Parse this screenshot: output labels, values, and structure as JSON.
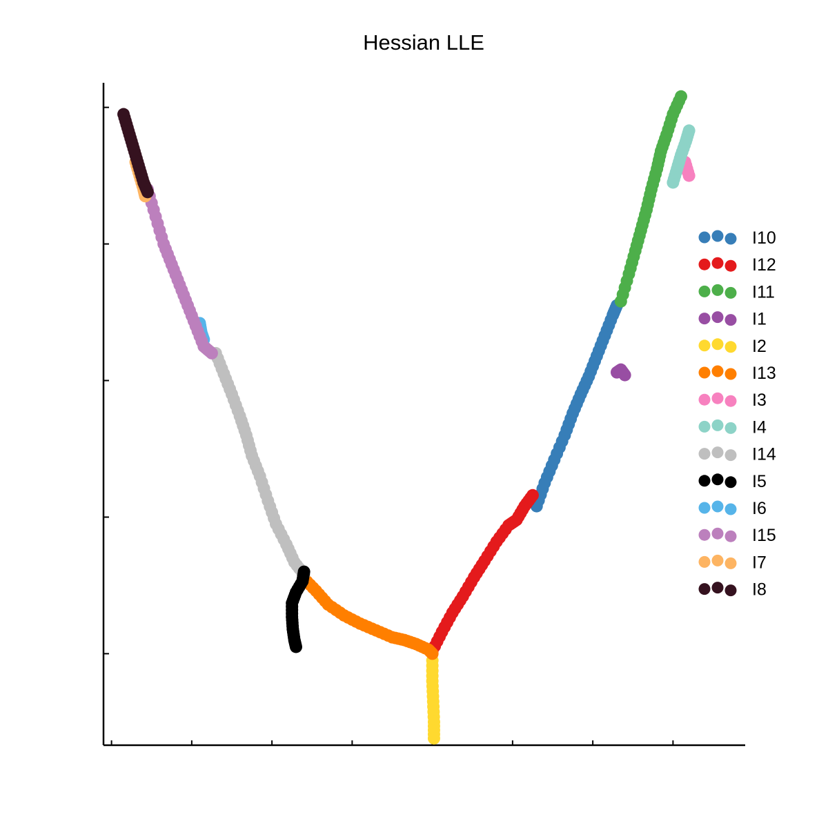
{
  "chart_data": {
    "type": "scatter",
    "title": "Hessian LLE",
    "xlabel": "",
    "ylabel": "",
    "xlim": [
      -1.9,
      6.1
    ],
    "ylim": [
      -0.67,
      4.18
    ],
    "xticks": [
      -1.8,
      -0.8,
      0.2,
      1.2,
      2.2,
      3.2,
      4.2,
      5.2,
      6.2
    ],
    "yticks": [
      0,
      1,
      2,
      3,
      4
    ],
    "tick_labels_shown": false,
    "grid": false,
    "legend": {
      "placement": "right"
    },
    "series": [
      {
        "name": "I10",
        "color": "#377eb8",
        "points": [
          [
            3.5,
            1.08
          ],
          [
            3.6,
            1.25
          ],
          [
            3.72,
            1.42
          ],
          [
            3.85,
            1.6
          ],
          [
            3.95,
            1.76
          ],
          [
            4.05,
            1.9
          ],
          [
            4.15,
            2.03
          ],
          [
            4.25,
            2.18
          ],
          [
            4.35,
            2.33
          ],
          [
            4.45,
            2.48
          ],
          [
            4.5,
            2.55
          ]
        ]
      },
      {
        "name": "I12",
        "color": "#e41a1c",
        "points": [
          [
            2.2,
            0.02
          ],
          [
            2.32,
            0.16
          ],
          [
            2.45,
            0.3
          ],
          [
            2.58,
            0.42
          ],
          [
            2.72,
            0.56
          ],
          [
            2.85,
            0.68
          ],
          [
            3.0,
            0.82
          ],
          [
            3.15,
            0.94
          ],
          [
            3.25,
            0.98
          ],
          [
            3.35,
            1.08
          ],
          [
            3.45,
            1.16
          ]
        ]
      },
      {
        "name": "I11",
        "color": "#4daf4a",
        "points": [
          [
            4.55,
            2.58
          ],
          [
            4.65,
            2.78
          ],
          [
            4.73,
            2.95
          ],
          [
            4.8,
            3.1
          ],
          [
            4.87,
            3.25
          ],
          [
            4.93,
            3.4
          ],
          [
            5.0,
            3.55
          ],
          [
            5.05,
            3.68
          ],
          [
            5.12,
            3.8
          ],
          [
            5.2,
            3.95
          ],
          [
            5.3,
            4.08
          ]
        ]
      },
      {
        "name": "I1",
        "color": "#984ea3",
        "points": [
          [
            4.5,
            2.06
          ],
          [
            4.55,
            2.08
          ],
          [
            4.6,
            2.04
          ]
        ]
      },
      {
        "name": "I2",
        "color": "#ffd92f",
        "points": [
          [
            2.2,
            -0.05
          ],
          [
            2.2,
            -0.2
          ],
          [
            2.21,
            -0.35
          ],
          [
            2.22,
            -0.5
          ],
          [
            2.22,
            -0.62
          ]
        ]
      },
      {
        "name": "I13",
        "color": "#ff7f00",
        "points": [
          [
            0.6,
            0.55
          ],
          [
            0.75,
            0.46
          ],
          [
            0.9,
            0.36
          ],
          [
            1.1,
            0.28
          ],
          [
            1.3,
            0.22
          ],
          [
            1.5,
            0.17
          ],
          [
            1.7,
            0.12
          ],
          [
            1.85,
            0.1
          ],
          [
            2.0,
            0.07
          ],
          [
            2.15,
            0.03
          ],
          [
            2.2,
            0.0
          ]
        ]
      },
      {
        "name": "I3",
        "color": "#f781bf",
        "points": [
          [
            5.35,
            3.6
          ],
          [
            5.4,
            3.5
          ]
        ]
      },
      {
        "name": "I4",
        "color": "#8dd3c7",
        "points": [
          [
            5.2,
            3.45
          ],
          [
            5.25,
            3.55
          ],
          [
            5.3,
            3.65
          ],
          [
            5.36,
            3.75
          ],
          [
            5.4,
            3.83
          ]
        ]
      },
      {
        "name": "I14",
        "color": "#bfbfbf",
        "points": [
          [
            -0.5,
            2.2
          ],
          [
            -0.4,
            2.05
          ],
          [
            -0.3,
            1.9
          ],
          [
            -0.2,
            1.74
          ],
          [
            -0.12,
            1.6
          ],
          [
            -0.05,
            1.45
          ],
          [
            0.05,
            1.3
          ],
          [
            0.15,
            1.12
          ],
          [
            0.25,
            0.95
          ],
          [
            0.38,
            0.8
          ],
          [
            0.48,
            0.67
          ],
          [
            0.6,
            0.58
          ]
        ]
      },
      {
        "name": "I5",
        "color": "#000000",
        "points": [
          [
            0.6,
            0.6
          ],
          [
            0.58,
            0.53
          ],
          [
            0.5,
            0.45
          ],
          [
            0.45,
            0.37
          ],
          [
            0.45,
            0.27
          ],
          [
            0.46,
            0.18
          ],
          [
            0.48,
            0.1
          ],
          [
            0.5,
            0.05
          ]
        ]
      },
      {
        "name": "I6",
        "color": "#56b4e9",
        "points": [
          [
            -0.7,
            2.42
          ],
          [
            -0.68,
            2.35
          ],
          [
            -0.65,
            2.3
          ]
        ]
      },
      {
        "name": "I15",
        "color": "#bc80bd",
        "points": [
          [
            -1.35,
            3.4
          ],
          [
            -1.25,
            3.2
          ],
          [
            -1.15,
            3.0
          ],
          [
            -1.05,
            2.85
          ],
          [
            -0.95,
            2.7
          ],
          [
            -0.85,
            2.55
          ],
          [
            -0.75,
            2.4
          ],
          [
            -0.65,
            2.25
          ],
          [
            -0.55,
            2.2
          ]
        ]
      },
      {
        "name": "I7",
        "color": "#fdb462",
        "points": [
          [
            -1.5,
            3.6
          ],
          [
            -1.45,
            3.5
          ],
          [
            -1.4,
            3.4
          ],
          [
            -1.38,
            3.35
          ]
        ]
      },
      {
        "name": "I8",
        "color": "#35121f",
        "points": [
          [
            -1.65,
            3.95
          ],
          [
            -1.6,
            3.85
          ],
          [
            -1.55,
            3.75
          ],
          [
            -1.5,
            3.65
          ],
          [
            -1.45,
            3.55
          ],
          [
            -1.4,
            3.45
          ],
          [
            -1.35,
            3.38
          ]
        ]
      }
    ]
  }
}
